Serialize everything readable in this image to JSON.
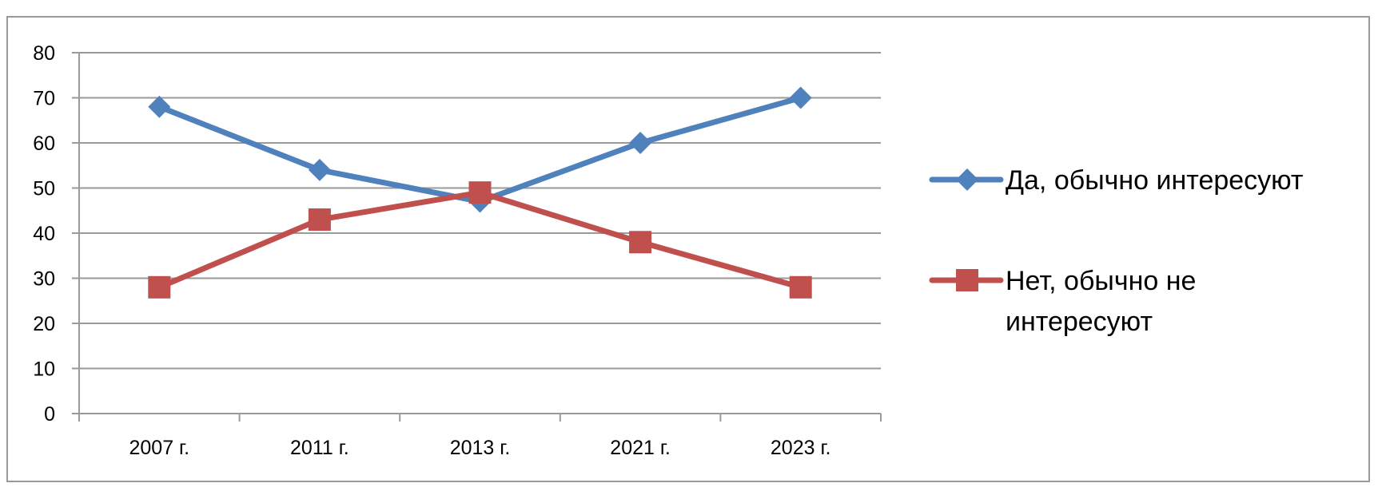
{
  "chart_data": {
    "type": "line",
    "title": "",
    "xlabel": "",
    "ylabel": "",
    "categories": [
      "2007 г.",
      "2011 г.",
      "2013 г.",
      "2021 г.",
      "2023 г."
    ],
    "ylim": [
      0,
      80
    ],
    "yticks": [
      "0",
      "10",
      "20",
      "30",
      "40",
      "50",
      "60",
      "70",
      "80"
    ],
    "grid": true,
    "legend_position": "right",
    "series": [
      {
        "name": "Да, обычно интересуют",
        "values": [
          68,
          54,
          47,
          60,
          70
        ],
        "color": "#4F81BD",
        "marker": "diamond"
      },
      {
        "name": "Нет, обычно не интересуют",
        "name_lines": [
          "Нет, обычно не",
          "интересуют"
        ],
        "values": [
          28,
          43,
          49,
          38,
          28
        ],
        "color": "#C0504D",
        "marker": "square"
      }
    ]
  }
}
